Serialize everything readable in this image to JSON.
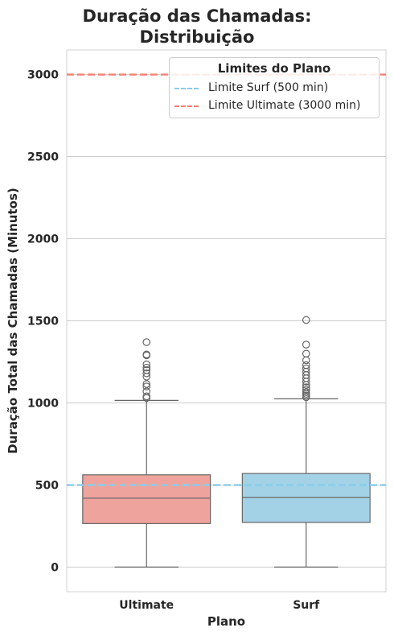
{
  "title_line1": "Duração das Chamadas:",
  "title_line2": "Distribuição",
  "legend": {
    "title": "Limites do Plano",
    "entries": [
      {
        "label": "Limite Surf (500 min)",
        "color": "#87ceeb"
      },
      {
        "label": "Limite Ultimate (3000 min)",
        "color": "#fa8072"
      }
    ]
  },
  "chart_data": {
    "type": "box",
    "title": "Duração das Chamadas: Distribuição",
    "xlabel": "Plano",
    "ylabel": "Duração Total das Chamadas (Minutos)",
    "ylim": [
      -150,
      3150
    ],
    "yticks": [
      0,
      500,
      1000,
      1500,
      2000,
      2500,
      3000
    ],
    "grid": true,
    "legend_position": "top-right",
    "categories": [
      "Ultimate",
      "Surf"
    ],
    "boxes": [
      {
        "name": "Ultimate",
        "color": "#eea39c",
        "whisker_low": 0,
        "q1": 265,
        "median": 420,
        "q3": 562,
        "whisker_high": 1015,
        "outliers": [
          1030,
          1040,
          1070,
          1100,
          1115,
          1160,
          1180,
          1200,
          1215,
          1235,
          1290,
          1295,
          1370
        ]
      },
      {
        "name": "Surf",
        "color": "#a3d2e6",
        "whisker_low": 0,
        "q1": 272,
        "median": 425,
        "q3": 570,
        "whisker_high": 1025,
        "outliers": [
          1035,
          1045,
          1055,
          1065,
          1080,
          1095,
          1110,
          1130,
          1150,
          1170,
          1190,
          1210,
          1230,
          1260,
          1300,
          1355,
          1505
        ]
      }
    ],
    "reference_lines": [
      {
        "label": "Limite Surf (500 min)",
        "y": 500,
        "color": "#87ceeb",
        "style": "dashed"
      },
      {
        "label": "Limite Ultimate (3000 min)",
        "y": 3000,
        "color": "#fa8072",
        "style": "dashed"
      }
    ]
  }
}
